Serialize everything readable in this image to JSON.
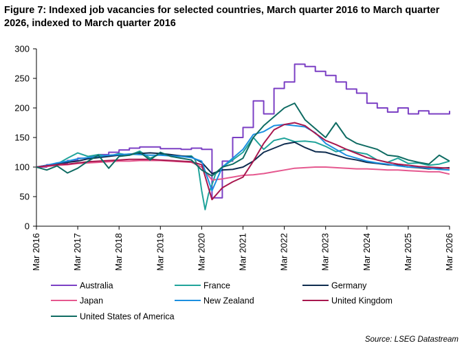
{
  "title": "Figure 7: Indexed job vacancies for selected countries, March quarter 2016 to March quarter 2026, indexed to March quarter 2016",
  "source": "Source: LSEG Datastream",
  "chart_data": {
    "type": "line",
    "title": "Figure 7: Indexed job vacancies for selected countries, March quarter 2016 to March quarter 2026, indexed to March quarter 2016",
    "xlabel": "",
    "ylabel": "",
    "ylim": [
      0,
      300
    ],
    "yticks": [
      0,
      50,
      100,
      150,
      200,
      250,
      300
    ],
    "xlim": [
      "2016-03",
      "2026-03"
    ],
    "xticks": [
      "Mar 2016",
      "Mar 2017",
      "Mar 2018",
      "Mar 2019",
      "Mar 2020",
      "Mar 2021",
      "Mar 2022",
      "Mar 2023",
      "Mar 2024",
      "Mar 2025",
      "Mar 2026"
    ],
    "grid": false,
    "legend_position": "bottom",
    "series": [
      {
        "name": "Australia",
        "color": "#7B3FC4",
        "step": true,
        "x": [
          "2016-03",
          "2016-06",
          "2016-09",
          "2016-12",
          "2017-03",
          "2017-06",
          "2017-09",
          "2017-12",
          "2018-03",
          "2018-06",
          "2018-09",
          "2018-12",
          "2019-03",
          "2019-06",
          "2019-09",
          "2019-12",
          "2020-03",
          "2020-06",
          "2020-09",
          "2020-12",
          "2021-03",
          "2021-06",
          "2021-09",
          "2021-12",
          "2022-03",
          "2022-06",
          "2022-09",
          "2022-12",
          "2023-03",
          "2023-06",
          "2023-09",
          "2023-12",
          "2024-03",
          "2024-06",
          "2024-09",
          "2024-12",
          "2025-03",
          "2025-06",
          "2025-09",
          "2025-12",
          "2026-03"
        ],
        "y": [
          100,
          104,
          107,
          111,
          115,
          118,
          121,
          125,
          129,
          132,
          134,
          134,
          131,
          131,
          130,
          132,
          130,
          48,
          110,
          150,
          167,
          212,
          190,
          233,
          244,
          274,
          270,
          262,
          255,
          244,
          232,
          225,
          208,
          200,
          193,
          200,
          190,
          195,
          190,
          190,
          195
        ]
      },
      {
        "name": "France",
        "color": "#1FA39A",
        "x": [
          "2016-03",
          "2016-06",
          "2016-09",
          "2016-12",
          "2017-03",
          "2017-06",
          "2017-09",
          "2017-12",
          "2018-03",
          "2018-06",
          "2018-09",
          "2018-12",
          "2019-03",
          "2019-06",
          "2019-09",
          "2019-12",
          "2020-01",
          "2020-02",
          "2020-03",
          "2020-04",
          "2020-05",
          "2020-06",
          "2020-07",
          "2020-09",
          "2020-12",
          "2021-03",
          "2021-06",
          "2021-09",
          "2021-12",
          "2022-03",
          "2022-06",
          "2022-09",
          "2022-12",
          "2023-03",
          "2023-06",
          "2023-09",
          "2023-12",
          "2024-03",
          "2024-06",
          "2024-09",
          "2024-12",
          "2025-03",
          "2025-06",
          "2025-09",
          "2025-12",
          "2026-03"
        ],
        "y": [
          100,
          101,
          105,
          115,
          124,
          118,
          121,
          118,
          123,
          120,
          127,
          115,
          122,
          120,
          118,
          119,
          113,
          100,
          60,
          28,
          55,
          70,
          88,
          100,
          112,
          125,
          150,
          130,
          145,
          149,
          143,
          144,
          142,
          135,
          126,
          130,
          125,
          122,
          112,
          108,
          115,
          106,
          107,
          103,
          105,
          110
        ]
      },
      {
        "name": "Germany",
        "color": "#0D2B4E",
        "x": [
          "2016-03",
          "2016-06",
          "2016-09",
          "2016-12",
          "2017-03",
          "2017-06",
          "2017-09",
          "2017-12",
          "2018-03",
          "2018-06",
          "2018-09",
          "2018-12",
          "2019-03",
          "2019-06",
          "2019-09",
          "2019-12",
          "2020-03",
          "2020-06",
          "2020-09",
          "2020-12",
          "2021-03",
          "2021-06",
          "2021-09",
          "2021-12",
          "2022-03",
          "2022-06",
          "2022-09",
          "2022-12",
          "2023-03",
          "2023-06",
          "2023-09",
          "2023-12",
          "2024-03",
          "2024-06",
          "2024-09",
          "2024-12",
          "2025-03",
          "2025-06",
          "2025-09",
          "2025-12",
          "2026-03"
        ],
        "y": [
          100,
          103,
          106,
          108,
          110,
          114,
          116,
          118,
          120,
          122,
          123,
          124,
          123,
          121,
          119,
          117,
          108,
          89,
          95,
          96,
          100,
          110,
          125,
          132,
          139,
          142,
          133,
          126,
          125,
          120,
          115,
          112,
          108,
          106,
          104,
          103,
          100,
          99,
          97,
          98,
          99
        ]
      },
      {
        "name": "Japan",
        "color": "#E5578E",
        "x": [
          "2016-03",
          "2016-06",
          "2016-09",
          "2016-12",
          "2017-03",
          "2017-06",
          "2017-09",
          "2017-12",
          "2018-03",
          "2018-06",
          "2018-09",
          "2018-12",
          "2019-03",
          "2019-06",
          "2019-09",
          "2019-12",
          "2020-03",
          "2020-06",
          "2020-09",
          "2020-12",
          "2021-03",
          "2021-06",
          "2021-09",
          "2021-12",
          "2022-03",
          "2022-06",
          "2022-09",
          "2022-12",
          "2023-03",
          "2023-06",
          "2023-09",
          "2023-12",
          "2024-03",
          "2024-06",
          "2024-09",
          "2024-12",
          "2025-03",
          "2025-06",
          "2025-09",
          "2025-12",
          "2026-03"
        ],
        "y": [
          100,
          101,
          103,
          104,
          106,
          107,
          108,
          109,
          110,
          110,
          111,
          111,
          111,
          110,
          109,
          108,
          100,
          78,
          80,
          83,
          86,
          87,
          89,
          92,
          95,
          98,
          99,
          100,
          100,
          99,
          98,
          97,
          97,
          96,
          95,
          95,
          94,
          93,
          92,
          92,
          88
        ]
      },
      {
        "name": "New Zealand",
        "color": "#1B8FE0",
        "x": [
          "2016-03",
          "2016-06",
          "2016-09",
          "2016-12",
          "2017-03",
          "2017-06",
          "2017-09",
          "2017-12",
          "2018-03",
          "2018-06",
          "2018-09",
          "2018-12",
          "2019-03",
          "2019-06",
          "2019-09",
          "2019-12",
          "2020-03",
          "2020-06",
          "2020-09",
          "2020-12",
          "2021-03",
          "2021-06",
          "2021-09",
          "2021-12",
          "2022-03",
          "2022-06",
          "2022-09",
          "2022-12",
          "2023-03",
          "2023-06",
          "2023-09",
          "2023-12",
          "2024-03",
          "2024-06",
          "2024-09",
          "2024-12",
          "2025-03",
          "2025-06",
          "2025-09",
          "2025-12",
          "2026-03"
        ],
        "y": [
          100,
          103,
          107,
          110,
          114,
          116,
          118,
          120,
          121,
          122,
          121,
          120,
          120,
          119,
          118,
          116,
          110,
          60,
          100,
          115,
          130,
          155,
          160,
          170,
          172,
          170,
          168,
          158,
          140,
          130,
          120,
          115,
          110,
          107,
          105,
          102,
          100,
          100,
          98,
          96,
          95
        ]
      },
      {
        "name": "United Kingdom",
        "color": "#A8174E",
        "x": [
          "2016-03",
          "2016-06",
          "2016-09",
          "2016-12",
          "2017-03",
          "2017-06",
          "2017-09",
          "2017-12",
          "2018-03",
          "2018-06",
          "2018-09",
          "2018-12",
          "2019-03",
          "2019-06",
          "2019-09",
          "2019-12",
          "2020-03",
          "2020-06",
          "2020-09",
          "2020-12",
          "2021-03",
          "2021-06",
          "2021-09",
          "2021-12",
          "2022-03",
          "2022-06",
          "2022-09",
          "2022-12",
          "2023-03",
          "2023-06",
          "2023-09",
          "2023-12",
          "2024-03",
          "2024-06",
          "2024-09",
          "2024-12",
          "2025-03",
          "2025-06",
          "2025-09",
          "2025-12",
          "2026-03"
        ],
        "y": [
          100,
          102,
          104,
          105,
          107,
          109,
          110,
          111,
          112,
          113,
          113,
          113,
          112,
          111,
          110,
          109,
          104,
          45,
          65,
          75,
          83,
          110,
          140,
          163,
          172,
          175,
          170,
          157,
          145,
          138,
          130,
          123,
          116,
          112,
          108,
          105,
          103,
          101,
          100,
          99,
          98
        ]
      },
      {
        "name": "United States of America",
        "color": "#0E6B62",
        "x": [
          "2016-03",
          "2016-06",
          "2016-09",
          "2016-12",
          "2017-03",
          "2017-06",
          "2017-09",
          "2017-12",
          "2018-03",
          "2018-06",
          "2018-09",
          "2018-12",
          "2019-03",
          "2019-06",
          "2019-09",
          "2019-12",
          "2020-03",
          "2020-06",
          "2020-09",
          "2020-12",
          "2021-03",
          "2021-06",
          "2021-09",
          "2021-12",
          "2022-03",
          "2022-06",
          "2022-09",
          "2022-12",
          "2023-03",
          "2023-06",
          "2023-09",
          "2023-12",
          "2024-03",
          "2024-06",
          "2024-09",
          "2024-12",
          "2025-03",
          "2025-06",
          "2025-09",
          "2025-12",
          "2026-03"
        ],
        "y": [
          100,
          95,
          102,
          90,
          98,
          110,
          120,
          98,
          118,
          120,
          125,
          112,
          125,
          118,
          115,
          112,
          95,
          85,
          100,
          105,
          115,
          150,
          170,
          185,
          200,
          208,
          180,
          165,
          150,
          175,
          150,
          140,
          135,
          130,
          120,
          118,
          112,
          108,
          105,
          120,
          110
        ]
      }
    ]
  }
}
